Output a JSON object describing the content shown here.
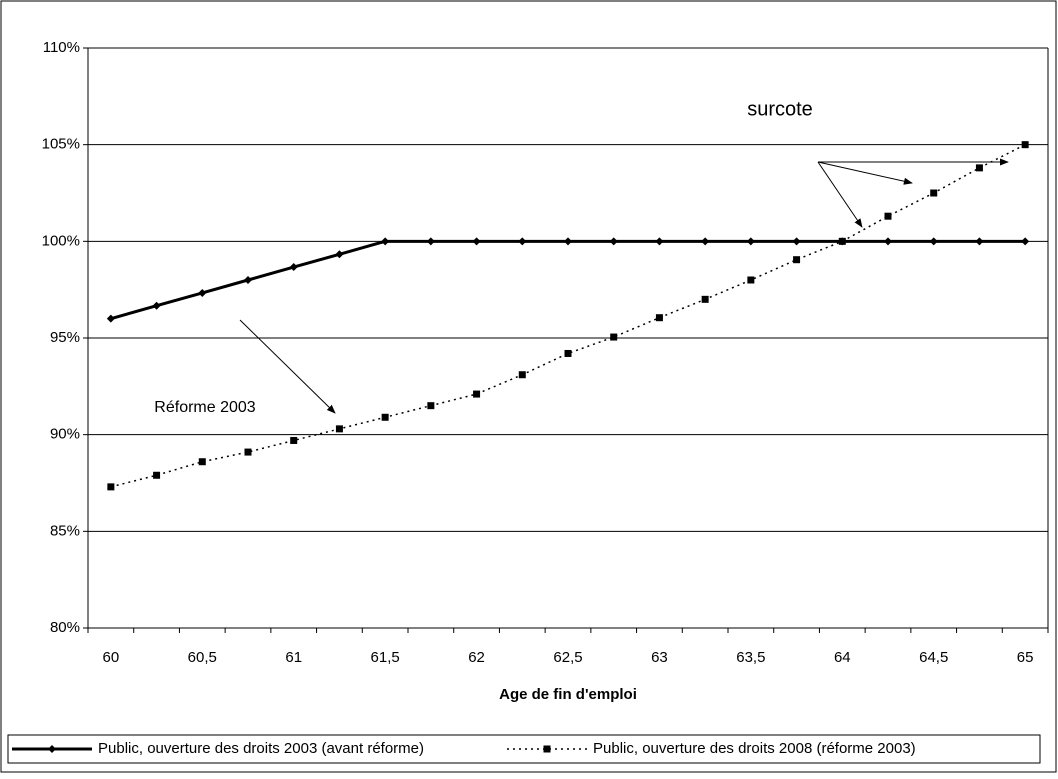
{
  "chart_data": {
    "type": "line",
    "x_label": "Age de fin d'emploi",
    "categories": [
      "60",
      null,
      "60,5",
      null,
      "61",
      null,
      "61,5",
      null,
      "62",
      null,
      "62,5",
      null,
      "63",
      null,
      "63,5",
      null,
      "64",
      null,
      "64,5",
      null,
      "65"
    ],
    "series": [
      {
        "name": "Public, ouverture des droits 2003 (avant réforme)",
        "color": "#000000",
        "style": "solid",
        "marker": "diamond",
        "values": [
          96.0,
          96.67,
          97.33,
          98.0,
          98.67,
          99.33,
          100,
          100,
          100,
          100,
          100,
          100,
          100,
          100,
          100,
          100,
          100,
          100,
          100,
          100,
          100
        ]
      },
      {
        "name": "Public, ouverture des droits 2008 (réforme 2003)",
        "color": "#000000",
        "style": "dotted",
        "marker": "square",
        "values": [
          87.3,
          87.9,
          88.6,
          89.1,
          89.7,
          90.3,
          90.9,
          91.5,
          92.1,
          93.1,
          94.2,
          95.05,
          96.05,
          97.0,
          98.0,
          99.05,
          100,
          101.3,
          102.5,
          103.8,
          105
        ]
      }
    ],
    "ylim": [
      80,
      110
    ],
    "yticks": [
      {
        "value": 80,
        "label": "80%"
      },
      {
        "value": 85,
        "label": "85%"
      },
      {
        "value": 90,
        "label": "90%"
      },
      {
        "value": 95,
        "label": "95%"
      },
      {
        "value": 100,
        "label": "100%"
      },
      {
        "value": 105,
        "label": "105%"
      },
      {
        "value": 110,
        "label": "110%"
      }
    ],
    "grid": true,
    "legend": "bottom",
    "annotations": [
      "surcote",
      "Réforme 2003"
    ]
  }
}
